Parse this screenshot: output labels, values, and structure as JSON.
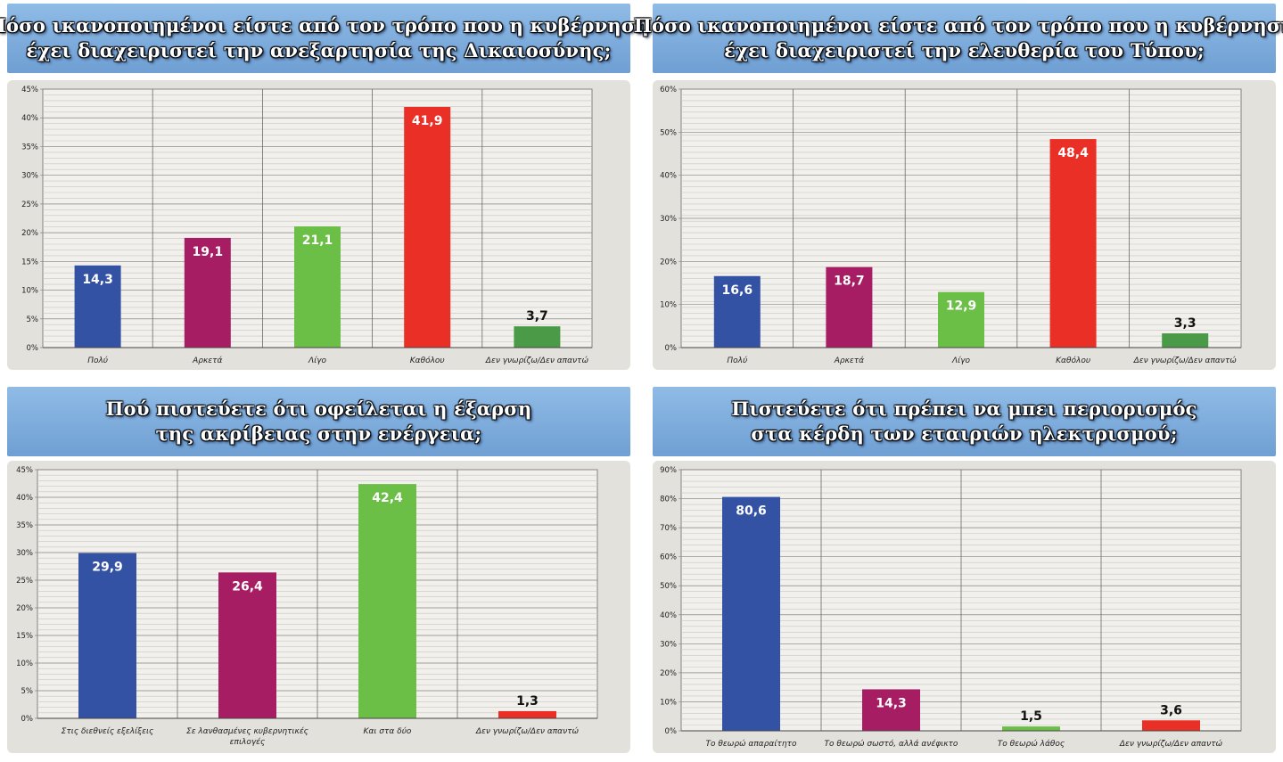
{
  "chart_data": [
    {
      "type": "bar",
      "title_lines": [
        "Πόσο ικανοποιημένοι είστε από τον τρόπο που η κυβέρνηση",
        "έχει διαχειριστεί την ανεξαρτησία της Δικαιοσύνης;"
      ],
      "categories": [
        "Πολύ",
        "Αρκετά",
        "Λίγο",
        "Καθόλου",
        "Δεν γνωρίζω/Δεν απαντώ"
      ],
      "values": [
        14.3,
        19.1,
        21.1,
        41.9,
        3.7
      ],
      "value_labels": [
        "14,3",
        "19,1",
        "21,1",
        "41,9",
        "3,7"
      ],
      "colors": [
        "#3452a4",
        "#a61d63",
        "#6bbf47",
        "#ea2f26",
        "#4a9a47"
      ],
      "ylim": [
        0,
        45
      ],
      "ytick_step": 5,
      "yticks": [
        "0%",
        "5%",
        "10%",
        "15%",
        "20%",
        "25%",
        "30%",
        "35%",
        "40%",
        "45%"
      ],
      "grid": true,
      "xlabel": "",
      "ylabel": ""
    },
    {
      "type": "bar",
      "title_lines": [
        "Πόσο ικανοποιημένοι είστε από τον τρόπο που η κυβέρνηση",
        "έχει διαχειριστεί την ελευθερία του Τύπου;"
      ],
      "categories": [
        "Πολύ",
        "Αρκετά",
        "Λίγο",
        "Καθόλου",
        "Δεν γνωρίζω/Δεν απαντώ"
      ],
      "values": [
        16.6,
        18.7,
        12.9,
        48.4,
        3.3
      ],
      "value_labels": [
        "16,6",
        "18,7",
        "12,9",
        "48,4",
        "3,3"
      ],
      "colors": [
        "#3452a4",
        "#a61d63",
        "#6bbf47",
        "#ea2f26",
        "#4a9a47"
      ],
      "ylim": [
        0,
        60
      ],
      "ytick_step": 10,
      "yticks": [
        "0%",
        "10%",
        "20%",
        "30%",
        "40%",
        "50%",
        "60%"
      ],
      "grid": true,
      "xlabel": "",
      "ylabel": ""
    },
    {
      "type": "bar",
      "title_lines": [
        "Πού πιστεύετε ότι οφείλεται η έξαρση",
        "της ακρίβειας στην ενέργεια;"
      ],
      "categories": [
        "Στις διεθνείς εξελίξεις",
        "Σε λανθασμένες κυβερνητικές επιλογές",
        "Και στα δύο",
        "Δεν γνωρίζω/Δεν απαντώ"
      ],
      "category_lines": [
        [
          "Στις διεθνείς εξελίξεις"
        ],
        [
          "Σε λανθασμένες κυβερνητικές",
          "επιλογές"
        ],
        [
          "Και στα δύο"
        ],
        [
          "Δεν γνωρίζω/Δεν απαντώ"
        ]
      ],
      "values": [
        29.9,
        26.4,
        42.4,
        1.3
      ],
      "value_labels": [
        "29,9",
        "26,4",
        "42,4",
        "1,3"
      ],
      "colors": [
        "#3452a4",
        "#a61d63",
        "#6bbf47",
        "#ea2f26"
      ],
      "ylim": [
        0,
        45
      ],
      "ytick_step": 5,
      "yticks": [
        "0%",
        "5%",
        "10%",
        "15%",
        "20%",
        "25%",
        "30%",
        "35%",
        "40%",
        "45%"
      ],
      "grid": true,
      "xlabel": "",
      "ylabel": ""
    },
    {
      "type": "bar",
      "title_lines": [
        "Πιστεύετε ότι πρέπει να μπει περιορισμός",
        "στα κέρδη των εταιριών ηλεκτρισμού;"
      ],
      "categories": [
        "Το θεωρώ απαραίτητο",
        "Το θεωρώ σωστό, αλλά ανέφικτο",
        "Το θεωρώ λάθος",
        "Δεν γνωρίζω/Δεν απαντώ"
      ],
      "values": [
        80.6,
        14.3,
        1.5,
        3.6
      ],
      "value_labels": [
        "80,6",
        "14,3",
        "1,5",
        "3,6"
      ],
      "colors": [
        "#3452a4",
        "#a61d63",
        "#6bbf47",
        "#ea2f26"
      ],
      "ylim": [
        0,
        90
      ],
      "ytick_step": 10,
      "yticks": [
        "0%",
        "10%",
        "20%",
        "30%",
        "40%",
        "50%",
        "60%",
        "70%",
        "80%",
        "90%"
      ],
      "grid": true,
      "xlabel": "",
      "ylabel": ""
    }
  ]
}
